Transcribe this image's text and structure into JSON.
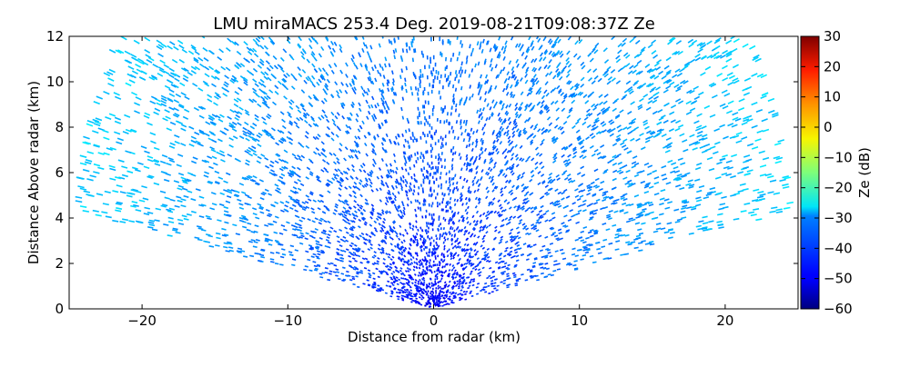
{
  "chart_data": {
    "type": "heatmap",
    "title": "LMU miraMACS 253.4 Deg. 2019-08-21T09:08:37Z  Ze",
    "xlabel": "Distance from radar (km)",
    "ylabel": "Distance Above radar  (km)",
    "xlim": [
      -25,
      25
    ],
    "ylim": [
      0,
      12
    ],
    "xticks": [
      -20,
      -10,
      0,
      10,
      20
    ],
    "xtick_labels": [
      "−20",
      "−10",
      "0",
      "10",
      "20"
    ],
    "yticks": [
      0,
      2,
      4,
      6,
      8,
      10,
      12
    ],
    "ytick_labels": [
      "0",
      "2",
      "4",
      "6",
      "8",
      "10",
      "12"
    ],
    "grid": false,
    "colorbar": {
      "label": "Ze (dB)",
      "range": [
        -60,
        30
      ],
      "ticks": [
        30,
        20,
        10,
        0,
        -10,
        -20,
        -30,
        -40,
        -50,
        -60
      ],
      "tick_labels": [
        "30",
        "20",
        "10",
        "0",
        "−10",
        "−20",
        "−30",
        "−40",
        "−50",
        "−60"
      ],
      "colormap": "jet"
    },
    "scan": {
      "radar_x_km": 0,
      "radar_y_km": 0,
      "max_range_km": 25,
      "elevation_min_deg": 10,
      "elevation_max_deg": 170,
      "ze_near_db": -52,
      "ze_far_db": -30
    }
  }
}
